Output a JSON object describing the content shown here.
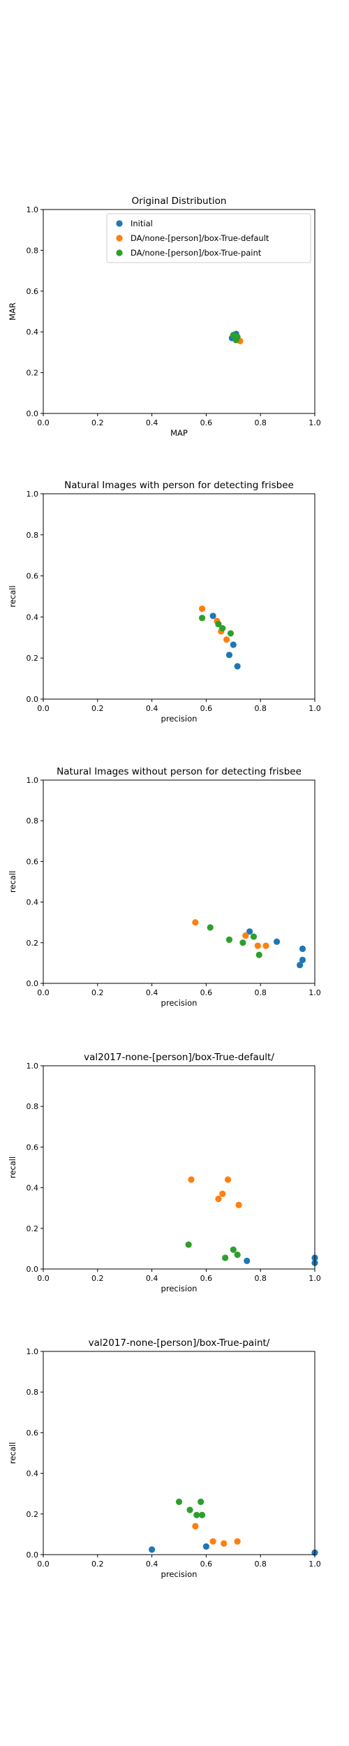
{
  "colors": {
    "Initial": "#1f77b4",
    "default": "#ff7f0e",
    "paint": "#2ca02c"
  },
  "chart_data": [
    {
      "type": "scatter",
      "title": "Original Distribution",
      "xlabel": "MAP",
      "ylabel": "MAR",
      "xlim": [
        0,
        1
      ],
      "ylim": [
        0,
        1
      ],
      "xticks": [
        "0.0",
        "0.2",
        "0.4",
        "0.6",
        "0.8",
        "1.0"
      ],
      "yticks": [
        "0.0",
        "0.2",
        "0.4",
        "0.6",
        "0.8",
        "1.0"
      ],
      "legend_position": "top-right",
      "series": [
        {
          "name": "Initial",
          "points": [
            [
              0.7,
              0.375
            ],
            [
              0.71,
              0.39
            ],
            [
              0.705,
              0.38
            ],
            [
              0.695,
              0.37
            ]
          ]
        },
        {
          "name": "DA/none-[person]/box-True-default",
          "points": [
            [
              0.725,
              0.355
            ],
            [
              0.715,
              0.37
            ]
          ]
        },
        {
          "name": "DA/none-[person]/box-True-paint",
          "points": [
            [
              0.71,
              0.36
            ],
            [
              0.705,
              0.38
            ],
            [
              0.715,
              0.375
            ],
            [
              0.7,
              0.385
            ]
          ]
        }
      ]
    },
    {
      "type": "scatter",
      "title": "Natural Images with person for detecting frisbee",
      "xlabel": "precision",
      "ylabel": "recall",
      "xlim": [
        0,
        1
      ],
      "ylim": [
        0,
        1
      ],
      "xticks": [
        "0.0",
        "0.2",
        "0.4",
        "0.6",
        "0.8",
        "1.0"
      ],
      "yticks": [
        "0.0",
        "0.2",
        "0.4",
        "0.6",
        "0.8",
        "1.0"
      ],
      "series": [
        {
          "name": "Initial",
          "points": [
            [
              0.625,
              0.405
            ],
            [
              0.7,
              0.265
            ],
            [
              0.685,
              0.215
            ],
            [
              0.715,
              0.16
            ]
          ]
        },
        {
          "name": "DA/none-[person]/box-True-default",
          "points": [
            [
              0.585,
              0.44
            ],
            [
              0.64,
              0.38
            ],
            [
              0.655,
              0.33
            ],
            [
              0.675,
              0.29
            ]
          ]
        },
        {
          "name": "DA/none-[person]/box-True-paint",
          "points": [
            [
              0.585,
              0.395
            ],
            [
              0.645,
              0.365
            ],
            [
              0.66,
              0.345
            ],
            [
              0.69,
              0.32
            ]
          ]
        }
      ]
    },
    {
      "type": "scatter",
      "title": "Natural Images without person for detecting frisbee",
      "xlabel": "precision",
      "ylabel": "recall",
      "xlim": [
        0,
        1
      ],
      "ylim": [
        0,
        1
      ],
      "xticks": [
        "0.0",
        "0.2",
        "0.4",
        "0.6",
        "0.8",
        "1.0"
      ],
      "yticks": [
        "0.0",
        "0.2",
        "0.4",
        "0.6",
        "0.8",
        "1.0"
      ],
      "series": [
        {
          "name": "Initial",
          "points": [
            [
              0.76,
              0.255
            ],
            [
              0.86,
              0.205
            ],
            [
              0.955,
              0.17
            ],
            [
              0.955,
              0.115
            ],
            [
              0.945,
              0.09
            ]
          ]
        },
        {
          "name": "DA/none-[person]/box-True-default",
          "points": [
            [
              0.56,
              0.3
            ],
            [
              0.745,
              0.235
            ],
            [
              0.79,
              0.185
            ],
            [
              0.82,
              0.185
            ]
          ]
        },
        {
          "name": "DA/none-[person]/box-True-paint",
          "points": [
            [
              0.615,
              0.275
            ],
            [
              0.685,
              0.215
            ],
            [
              0.735,
              0.2
            ],
            [
              0.775,
              0.23
            ],
            [
              0.795,
              0.14
            ]
          ]
        }
      ]
    },
    {
      "type": "scatter",
      "title": "val2017-none-[person]/box-True-default/",
      "xlabel": "precision",
      "ylabel": "recall",
      "xlim": [
        0,
        1
      ],
      "ylim": [
        0,
        1
      ],
      "xticks": [
        "0.0",
        "0.2",
        "0.4",
        "0.6",
        "0.8",
        "1.0"
      ],
      "yticks": [
        "0.0",
        "0.2",
        "0.4",
        "0.6",
        "0.8",
        "1.0"
      ],
      "series": [
        {
          "name": "Initial",
          "points": [
            [
              0.75,
              0.04
            ],
            [
              1.0,
              0.055
            ],
            [
              1.0,
              0.03
            ]
          ]
        },
        {
          "name": "DA/none-[person]/box-True-default",
          "points": [
            [
              0.545,
              0.44
            ],
            [
              0.68,
              0.44
            ],
            [
              0.66,
              0.37
            ],
            [
              0.645,
              0.345
            ],
            [
              0.72,
              0.315
            ]
          ]
        },
        {
          "name": "DA/none-[person]/box-True-paint",
          "points": [
            [
              0.535,
              0.12
            ],
            [
              0.7,
              0.095
            ],
            [
              0.715,
              0.07
            ],
            [
              0.67,
              0.055
            ]
          ]
        }
      ]
    },
    {
      "type": "scatter",
      "title": "val2017-none-[person]/box-True-paint/",
      "xlabel": "precision",
      "ylabel": "recall",
      "xlim": [
        0,
        1
      ],
      "ylim": [
        0,
        1
      ],
      "xticks": [
        "0.0",
        "0.2",
        "0.4",
        "0.6",
        "0.8",
        "1.0"
      ],
      "yticks": [
        "0.0",
        "0.2",
        "0.4",
        "0.6",
        "0.8",
        "1.0"
      ],
      "series": [
        {
          "name": "Initial",
          "points": [
            [
              0.4,
              0.025
            ],
            [
              0.6,
              0.04
            ],
            [
              1.0,
              0.01
            ]
          ]
        },
        {
          "name": "DA/none-[person]/box-True-default",
          "points": [
            [
              0.56,
              0.14
            ],
            [
              0.625,
              0.065
            ],
            [
              0.665,
              0.055
            ],
            [
              0.715,
              0.065
            ]
          ]
        },
        {
          "name": "DA/none-[person]/box-True-paint",
          "points": [
            [
              0.5,
              0.26
            ],
            [
              0.54,
              0.22
            ],
            [
              0.565,
              0.195
            ],
            [
              0.58,
              0.26
            ],
            [
              0.585,
              0.195
            ]
          ]
        }
      ]
    }
  ]
}
